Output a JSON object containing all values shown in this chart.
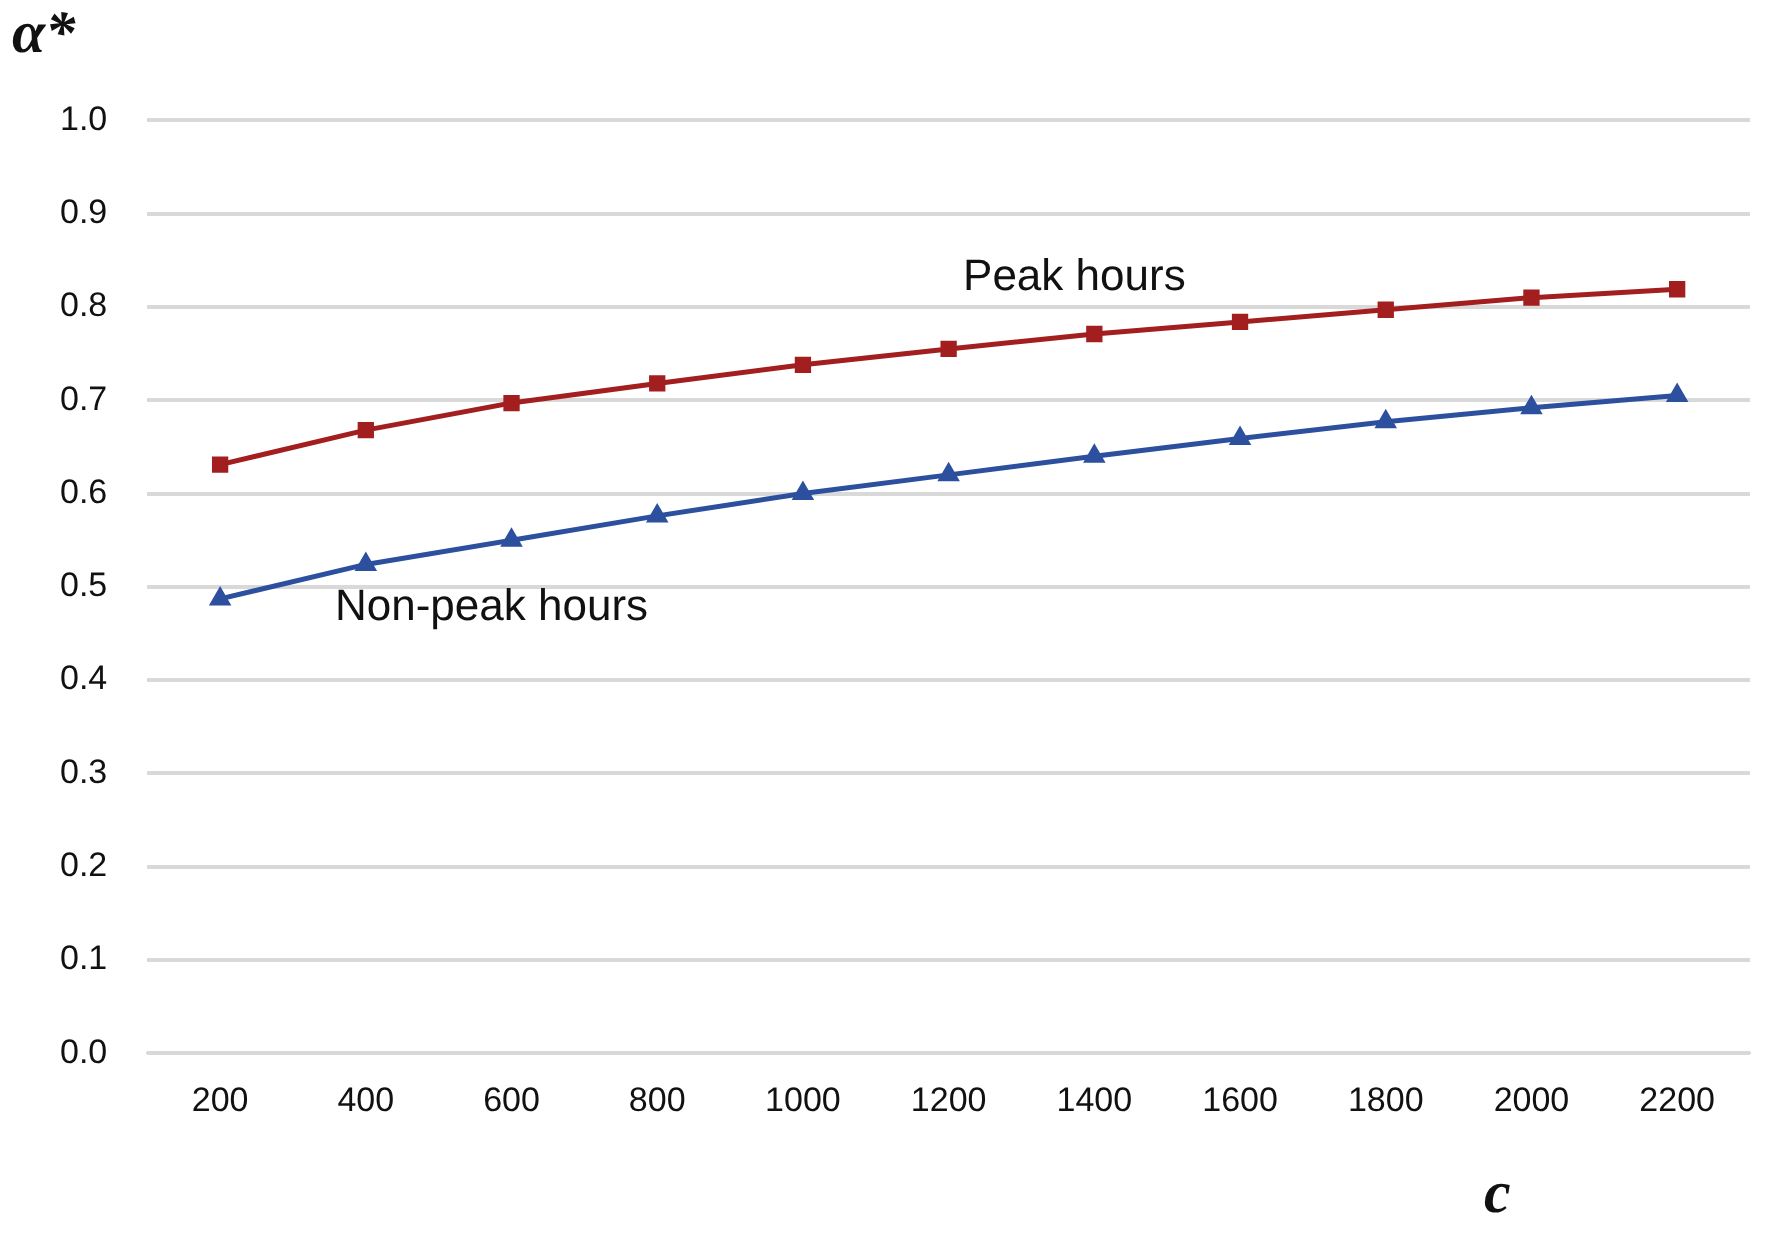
{
  "chart_data": {
    "type": "line",
    "xlabel": "c",
    "ylabel": "α*",
    "categories": [
      "200",
      "400",
      "600",
      "800",
      "1000",
      "1200",
      "1400",
      "1600",
      "1800",
      "2000",
      "2200"
    ],
    "series": [
      {
        "name": "Peak hours",
        "color": "#a31f1f",
        "marker": "square",
        "values": [
          0.631,
          0.668,
          0.697,
          0.718,
          0.738,
          0.755,
          0.771,
          0.784,
          0.797,
          0.81,
          0.819
        ]
      },
      {
        "name": "Non-peak hours",
        "color": "#2c4f9e",
        "marker": "triangle",
        "values": [
          0.487,
          0.524,
          0.55,
          0.576,
          0.6,
          0.62,
          0.64,
          0.659,
          0.677,
          0.692,
          0.705
        ]
      }
    ],
    "ylim": [
      0,
      1
    ],
    "yticks": [
      {
        "value": 0,
        "label": "0.0"
      },
      0.1,
      0.2,
      0.3,
      0.4,
      0.5,
      0.6,
      0.7,
      0.8,
      0.9,
      {
        "value": 1,
        "label": "1.0"
      }
    ],
    "grid": "y",
    "legend": false,
    "line_style": "solid"
  }
}
